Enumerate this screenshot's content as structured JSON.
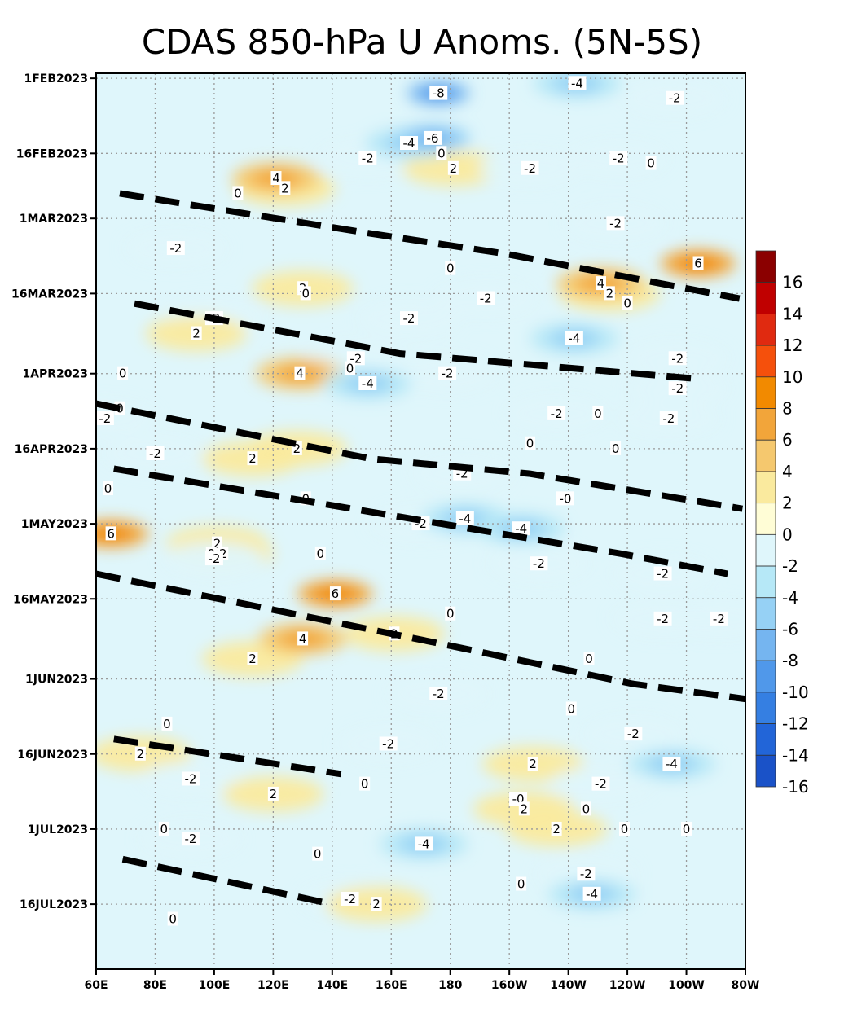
{
  "chart_data": {
    "type": "heatmap",
    "title": "CDAS 850-hPa U Anoms. (5N-5S)",
    "x_ticks": [
      "60E",
      "80E",
      "100E",
      "120E",
      "140E",
      "160E",
      "180",
      "160W",
      "140W",
      "120W",
      "100W",
      "80W"
    ],
    "x_values": [
      60,
      80,
      100,
      120,
      140,
      160,
      180,
      200,
      220,
      240,
      260,
      280
    ],
    "xlim": [
      60,
      280
    ],
    "y_ticks": [
      "1FEB2023",
      "16FEB2023",
      "1MAR2023",
      "16MAR2023",
      "1APR2023",
      "16APR2023",
      "1MAY2023",
      "16MAY2023",
      "1JUN2023",
      "16JUN2023",
      "1JUL2023",
      "16JUL2023"
    ],
    "y_values": [
      "2023-02-01",
      "2023-02-16",
      "2023-03-01",
      "2023-03-16",
      "2023-04-01",
      "2023-04-16",
      "2023-05-01",
      "2023-05-16",
      "2023-06-01",
      "2023-06-16",
      "2023-07-01",
      "2023-07-16"
    ],
    "ylim": [
      "2023-01-31",
      "2023-07-29"
    ],
    "grid": true,
    "colorbar": {
      "labels": [
        "16",
        "14",
        "12",
        "10",
        "8",
        "6",
        "4",
        "2",
        "0",
        "-2",
        "-4",
        "-6",
        "-8",
        "-10",
        "-12",
        "-14",
        "-16"
      ],
      "colors": [
        "#8b0000",
        "#c00000",
        "#e02a10",
        "#f5500c",
        "#f28a00",
        "#f2a53a",
        "#f5c86e",
        "#faea9e",
        "#fffdd6",
        "#dff6fb",
        "#b6e8f7",
        "#96d1f5",
        "#75b5f0",
        "#5098ea",
        "#357fe2",
        "#2265d8",
        "#1a52c8"
      ]
    },
    "contour_labels": [
      {
        "text": "-8",
        "lon": 176,
        "date": "2023-02-04"
      },
      {
        "text": "-4",
        "lon": 223,
        "date": "2023-02-02"
      },
      {
        "text": "-2",
        "lon": 256,
        "date": "2023-02-05"
      },
      {
        "text": "-4",
        "lon": 166,
        "date": "2023-02-14"
      },
      {
        "text": "-6",
        "lon": 174,
        "date": "2023-02-13"
      },
      {
        "text": "0",
        "lon": 177,
        "date": "2023-02-16"
      },
      {
        "text": "-2",
        "lon": 152,
        "date": "2023-02-17"
      },
      {
        "text": "2",
        "lon": 181,
        "date": "2023-02-19"
      },
      {
        "text": "-2",
        "lon": 207,
        "date": "2023-02-19"
      },
      {
        "text": "-2",
        "lon": 237,
        "date": "2023-02-17"
      },
      {
        "text": "0",
        "lon": 248,
        "date": "2023-02-18"
      },
      {
        "text": "4",
        "lon": 121,
        "date": "2023-02-21"
      },
      {
        "text": "2",
        "lon": 124,
        "date": "2023-02-23"
      },
      {
        "text": "0",
        "lon": 108,
        "date": "2023-02-24"
      },
      {
        "text": "-2",
        "lon": 236,
        "date": "2023-03-02"
      },
      {
        "text": "-2",
        "lon": 87,
        "date": "2023-03-07"
      },
      {
        "text": "0",
        "lon": 180,
        "date": "2023-03-11"
      },
      {
        "text": "6",
        "lon": 264,
        "date": "2023-03-10"
      },
      {
        "text": "2",
        "lon": 130,
        "date": "2023-03-15"
      },
      {
        "text": "0",
        "lon": 131,
        "date": "2023-03-16"
      },
      {
        "text": "4",
        "lon": 231,
        "date": "2023-03-14"
      },
      {
        "text": "2",
        "lon": 234,
        "date": "2023-03-16"
      },
      {
        "text": "0",
        "lon": 240,
        "date": "2023-03-18"
      },
      {
        "text": "-2",
        "lon": 192,
        "date": "2023-03-17"
      },
      {
        "text": "-2",
        "lon": 100,
        "date": "2023-03-21"
      },
      {
        "text": "2",
        "lon": 94,
        "date": "2023-03-24"
      },
      {
        "text": "-2",
        "lon": 166,
        "date": "2023-03-21"
      },
      {
        "text": "-4",
        "lon": 222,
        "date": "2023-03-25"
      },
      {
        "text": "-2",
        "lon": 257,
        "date": "2023-03-29"
      },
      {
        "text": "-2",
        "lon": 148,
        "date": "2023-03-29"
      },
      {
        "text": "0",
        "lon": 146,
        "date": "2023-03-31"
      },
      {
        "text": "-2",
        "lon": 179,
        "date": "2023-04-01"
      },
      {
        "text": "0",
        "lon": 69,
        "date": "2023-04-01"
      },
      {
        "text": "4",
        "lon": 129,
        "date": "2023-04-01"
      },
      {
        "text": "-4",
        "lon": 152,
        "date": "2023-04-03"
      },
      {
        "text": "-2",
        "lon": 257,
        "date": "2023-04-04"
      },
      {
        "text": "0",
        "lon": 68,
        "date": "2023-04-08"
      },
      {
        "text": "-2",
        "lon": 63,
        "date": "2023-04-10"
      },
      {
        "text": "-2",
        "lon": 216,
        "date": "2023-04-09"
      },
      {
        "text": "0",
        "lon": 230,
        "date": "2023-04-09"
      },
      {
        "text": "-2",
        "lon": 254,
        "date": "2023-04-10"
      },
      {
        "text": "-2",
        "lon": 80,
        "date": "2023-04-17"
      },
      {
        "text": "2",
        "lon": 113,
        "date": "2023-04-18"
      },
      {
        "text": "2",
        "lon": 128,
        "date": "2023-04-16"
      },
      {
        "text": "0",
        "lon": 207,
        "date": "2023-04-15"
      },
      {
        "text": "0",
        "lon": 236,
        "date": "2023-04-16"
      },
      {
        "text": "0",
        "lon": 64,
        "date": "2023-04-24"
      },
      {
        "text": "-2",
        "lon": 184,
        "date": "2023-04-21"
      },
      {
        "text": "0",
        "lon": 131,
        "date": "2023-04-26"
      },
      {
        "text": "-0",
        "lon": 219,
        "date": "2023-04-26"
      },
      {
        "text": "-4",
        "lon": 185,
        "date": "2023-04-30"
      },
      {
        "text": "-4",
        "lon": 204,
        "date": "2023-05-02"
      },
      {
        "text": "-2",
        "lon": 170,
        "date": "2023-05-01"
      },
      {
        "text": "6",
        "lon": 65,
        "date": "2023-05-03"
      },
      {
        "text": "2",
        "lon": 101,
        "date": "2023-05-05"
      },
      {
        "text": "0",
        "lon": 99,
        "date": "2023-05-07"
      },
      {
        "text": "2",
        "lon": 103,
        "date": "2023-05-07"
      },
      {
        "text": "-2",
        "lon": 100,
        "date": "2023-05-08"
      },
      {
        "text": "0",
        "lon": 136,
        "date": "2023-05-07"
      },
      {
        "text": "-2",
        "lon": 210,
        "date": "2023-05-09"
      },
      {
        "text": "-2",
        "lon": 252,
        "date": "2023-05-11"
      },
      {
        "text": "6",
        "lon": 141,
        "date": "2023-05-15"
      },
      {
        "text": "0",
        "lon": 180,
        "date": "2023-05-19"
      },
      {
        "text": "-2",
        "lon": 252,
        "date": "2023-05-20"
      },
      {
        "text": "-2",
        "lon": 271,
        "date": "2023-05-20"
      },
      {
        "text": "4",
        "lon": 130,
        "date": "2023-05-24"
      },
      {
        "text": "2",
        "lon": 161,
        "date": "2023-05-23"
      },
      {
        "text": "0",
        "lon": 227,
        "date": "2023-05-28"
      },
      {
        "text": "2",
        "lon": 113,
        "date": "2023-05-28"
      },
      {
        "text": "-2",
        "lon": 176,
        "date": "2023-06-04"
      },
      {
        "text": "0",
        "lon": 221,
        "date": "2023-06-07"
      },
      {
        "text": "0",
        "lon": 84,
        "date": "2023-06-10"
      },
      {
        "text": "-2",
        "lon": 242,
        "date": "2023-06-12"
      },
      {
        "text": "2",
        "lon": 75,
        "date": "2023-06-16"
      },
      {
        "text": "-2",
        "lon": 159,
        "date": "2023-06-14"
      },
      {
        "text": "2",
        "lon": 208,
        "date": "2023-06-18"
      },
      {
        "text": "-4",
        "lon": 255,
        "date": "2023-06-18"
      },
      {
        "text": "-2",
        "lon": 92,
        "date": "2023-06-21"
      },
      {
        "text": "2",
        "lon": 120,
        "date": "2023-06-24"
      },
      {
        "text": "0",
        "lon": 151,
        "date": "2023-06-22"
      },
      {
        "text": "-2",
        "lon": 231,
        "date": "2023-06-22"
      },
      {
        "text": "-0",
        "lon": 203,
        "date": "2023-06-25"
      },
      {
        "text": "2",
        "lon": 205,
        "date": "2023-06-27"
      },
      {
        "text": "0",
        "lon": 226,
        "date": "2023-06-27"
      },
      {
        "text": "0",
        "lon": 83,
        "date": "2023-07-01"
      },
      {
        "text": "2",
        "lon": 216,
        "date": "2023-07-01"
      },
      {
        "text": "0",
        "lon": 239,
        "date": "2023-07-01"
      },
      {
        "text": "0",
        "lon": 260,
        "date": "2023-07-01"
      },
      {
        "text": "-2",
        "lon": 92,
        "date": "2023-07-03"
      },
      {
        "text": "-4",
        "lon": 171,
        "date": "2023-07-04"
      },
      {
        "text": "0",
        "lon": 135,
        "date": "2023-07-06"
      },
      {
        "text": "-2",
        "lon": 226,
        "date": "2023-07-10"
      },
      {
        "text": "0",
        "lon": 204,
        "date": "2023-07-12"
      },
      {
        "text": "-4",
        "lon": 228,
        "date": "2023-07-14"
      },
      {
        "text": "-2",
        "lon": 146,
        "date": "2023-07-15"
      },
      {
        "text": "2",
        "lon": 155,
        "date": "2023-07-16"
      },
      {
        "text": "0",
        "lon": 86,
        "date": "2023-07-19"
      }
    ],
    "annotation_lines": [
      [
        {
          "lon": 68,
          "date": "2023-02-24"
        },
        {
          "lon": 153,
          "date": "2023-03-04"
        },
        {
          "lon": 198,
          "date": "2023-03-08"
        },
        {
          "lon": 278,
          "date": "2023-03-17"
        }
      ],
      [
        {
          "lon": 73,
          "date": "2023-03-18"
        },
        {
          "lon": 163,
          "date": "2023-03-28"
        },
        {
          "lon": 263,
          "date": "2023-04-02"
        }
      ],
      [
        {
          "lon": 60,
          "date": "2023-04-07"
        },
        {
          "lon": 153,
          "date": "2023-04-18"
        },
        {
          "lon": 207,
          "date": "2023-04-21"
        },
        {
          "lon": 279,
          "date": "2023-04-28"
        }
      ],
      [
        {
          "lon": 66,
          "date": "2023-04-20"
        },
        {
          "lon": 177,
          "date": "2023-05-01"
        },
        {
          "lon": 238,
          "date": "2023-05-07"
        },
        {
          "lon": 274,
          "date": "2023-05-11"
        }
      ],
      [
        {
          "lon": 60,
          "date": "2023-05-11"
        },
        {
          "lon": 177,
          "date": "2023-05-25"
        },
        {
          "lon": 242,
          "date": "2023-06-02"
        },
        {
          "lon": 280,
          "date": "2023-06-05"
        }
      ],
      [
        {
          "lon": 66,
          "date": "2023-06-13"
        },
        {
          "lon": 143,
          "date": "2023-06-20"
        }
      ],
      [
        {
          "lon": 69,
          "date": "2023-07-07"
        },
        {
          "lon": 140,
          "date": "2023-07-16"
        }
      ]
    ]
  }
}
